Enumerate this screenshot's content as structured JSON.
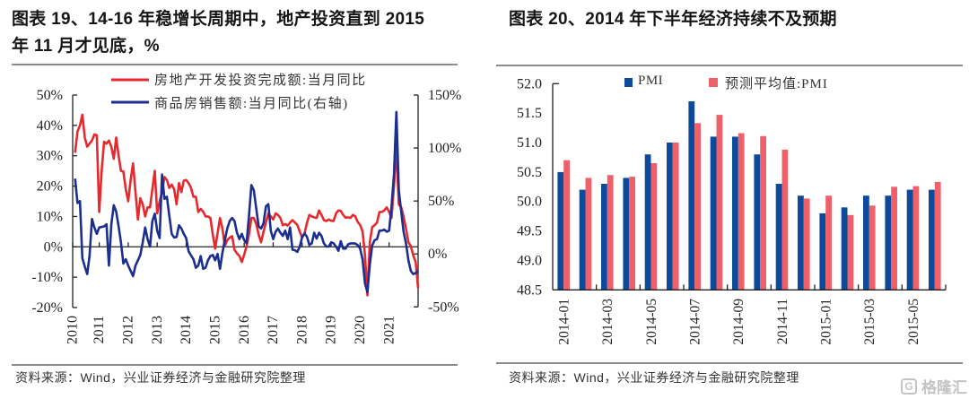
{
  "left_panel": {
    "title_line1": "图表 19、14-16 年稳增长周期中，地产投资直到 2015",
    "title_line2": "年 11 月才见底，%",
    "source": "资料来源：Wind，兴业证券经济与金融研究院整理"
  },
  "right_panel": {
    "title": "图表 20、2014 年下半年经济持续不及预期",
    "source": "资料来源：Wind，兴业证券经济与金融研究院整理"
  },
  "watermark": {
    "icon": "gelonghui-logo-icon",
    "logo_glyph": "G",
    "text": "格隆汇"
  },
  "chart_data": [
    {
      "type": "line",
      "title": "图表 19、14-16 年稳增长周期中，地产投资直到 2015 年 11 月才见底，%",
      "xlabel": "",
      "legend_position": "top-center",
      "grid": false,
      "x_tick_labels": [
        "2010",
        "2011",
        "2012",
        "2013",
        "2014",
        "2015",
        "2016",
        "2017",
        "2018",
        "2019",
        "2020",
        "2021"
      ],
      "y_left": {
        "range": [
          -20,
          50
        ],
        "ticks": [
          {
            "value": 50,
            "label": "50%"
          },
          {
            "value": 40,
            "label": "40%"
          },
          {
            "value": 30,
            "label": "30%"
          },
          {
            "value": 20,
            "label": "20%"
          },
          {
            "value": 10,
            "label": "10%"
          },
          {
            "value": 0,
            "label": "0%"
          },
          {
            "value": -10,
            "label": "-10%"
          },
          {
            "value": -20,
            "label": "-20%"
          }
        ]
      },
      "y_right": {
        "range": [
          -50,
          150
        ],
        "ticks": [
          {
            "value": 150,
            "label": "150%"
          },
          {
            "value": 100,
            "label": "100%"
          },
          {
            "value": 50,
            "label": "50%"
          },
          {
            "value": 0,
            "label": "0%"
          },
          {
            "value": -50,
            "label": "-50%"
          }
        ]
      },
      "x": [
        "2010-02",
        "2010-03",
        "2010-04",
        "2010-05",
        "2010-06",
        "2010-07",
        "2010-08",
        "2010-09",
        "2010-10",
        "2010-11",
        "2010-12",
        "2011-01",
        "2011-02",
        "2011-03",
        "2011-04",
        "2011-05",
        "2011-06",
        "2011-07",
        "2011-08",
        "2011-09",
        "2011-10",
        "2011-11",
        "2011-12",
        "2012-01",
        "2012-02",
        "2012-03",
        "2012-04",
        "2012-05",
        "2012-06",
        "2012-07",
        "2012-08",
        "2012-09",
        "2012-10",
        "2012-11",
        "2012-12",
        "2013-01",
        "2013-02",
        "2013-03",
        "2013-04",
        "2013-05",
        "2013-06",
        "2013-07",
        "2013-08",
        "2013-09",
        "2013-10",
        "2013-11",
        "2013-12",
        "2014-01",
        "2014-02",
        "2014-03",
        "2014-04",
        "2014-05",
        "2014-06",
        "2014-07",
        "2014-08",
        "2014-09",
        "2014-10",
        "2014-11",
        "2014-12",
        "2015-01",
        "2015-02",
        "2015-03",
        "2015-04",
        "2015-05",
        "2015-06",
        "2015-07",
        "2015-08",
        "2015-09",
        "2015-10",
        "2015-11",
        "2015-12",
        "2016-01",
        "2016-02",
        "2016-03",
        "2016-04",
        "2016-05",
        "2016-06",
        "2016-07",
        "2016-08",
        "2016-09",
        "2016-10",
        "2016-11",
        "2016-12",
        "2017-01",
        "2017-02",
        "2017-03",
        "2017-04",
        "2017-05",
        "2017-06",
        "2017-07",
        "2017-08",
        "2017-09",
        "2017-10",
        "2017-11",
        "2017-12",
        "2018-01",
        "2018-02",
        "2018-03",
        "2018-04",
        "2018-05",
        "2018-06",
        "2018-07",
        "2018-08",
        "2018-09",
        "2018-10",
        "2018-11",
        "2018-12",
        "2019-01",
        "2019-02",
        "2019-03",
        "2019-04",
        "2019-05",
        "2019-06",
        "2019-07",
        "2019-08",
        "2019-09",
        "2019-10",
        "2019-11",
        "2019-12",
        "2020-01",
        "2020-02",
        "2020-03",
        "2020-04",
        "2020-05",
        "2020-06",
        "2020-07",
        "2020-08",
        "2020-09",
        "2020-10",
        "2020-11",
        "2020-12",
        "2021-01",
        "2021-02",
        "2021-03",
        "2021-04",
        "2021-05",
        "2021-06",
        "2021-07",
        "2021-08",
        "2021-09",
        "2021-10",
        "2021-11",
        "2021-12"
      ],
      "series": [
        {
          "name": "房地产开发投资完成额:当月同比",
          "axis": "left",
          "color": "#e52a2f",
          "values": [
            31,
            38,
            40,
            43.5,
            36,
            33,
            34,
            35,
            37,
            36.8,
            11.5,
            25,
            34.6,
            34,
            35,
            33,
            29,
            36,
            30,
            25,
            24.8,
            19,
            15,
            22,
            27.5,
            18,
            9,
            16,
            14,
            10,
            13,
            13,
            19,
            25,
            11,
            15,
            18,
            23,
            22,
            19.4,
            20.5,
            19,
            14,
            21,
            18,
            21.8,
            22,
            21,
            19.4,
            16.5,
            16.5,
            11.5,
            12.5,
            11.6,
            10,
            10,
            9.5,
            4,
            -0.6,
            4.5,
            9.5,
            6,
            0.3,
            2.2,
            3,
            3.5,
            -1,
            -2.2,
            -3,
            -5,
            -2.5,
            0.2,
            4,
            9.5,
            9.5,
            7.5,
            4,
            1.5,
            5,
            8,
            11,
            10,
            9,
            11,
            10.5,
            9.5,
            7.1,
            7.5,
            7,
            8,
            8.8,
            8,
            7.2,
            5,
            3,
            4.5,
            8,
            10.5,
            10,
            9.7,
            9.5,
            12,
            10.5,
            8.8,
            8.5,
            9,
            8.6,
            8.5,
            11,
            12,
            11.8,
            10.5,
            9.6,
            9.7,
            9.5,
            10.5,
            10,
            8.2,
            7.2,
            5.1,
            -2.8,
            -16,
            1.5,
            6.5,
            7.1,
            8,
            11.5,
            11.5,
            12,
            13,
            11.5,
            9.5,
            20,
            33,
            14,
            13,
            10,
            6,
            1.5,
            0.2,
            -2.8,
            -5,
            -13.6
          ]
        },
        {
          "name": "商品房销售额:当月同比(右轴)",
          "axis": "right",
          "color": "#1c2e8e",
          "values": [
            71,
            48,
            50,
            -4,
            -12,
            -19,
            -2,
            33,
            25,
            19,
            25,
            25.5,
            26,
            28,
            -11,
            28,
            46,
            40,
            26,
            11,
            -9,
            -5,
            -11,
            -16,
            -21,
            -11,
            -6,
            -1,
            11,
            25,
            14,
            7,
            31,
            38,
            22,
            15,
            75,
            52,
            54,
            36,
            19,
            15.5,
            16,
            27,
            24,
            19,
            15,
            2.5,
            -1.4,
            -5,
            -13,
            -11,
            -2,
            -14,
            -13,
            -6,
            -2,
            -1,
            -6,
            0,
            -14,
            1,
            13,
            24,
            31,
            34,
            31,
            20,
            14,
            19,
            13,
            10,
            36,
            65,
            60,
            43,
            26,
            24,
            29,
            45,
            47,
            22,
            14,
            21,
            24,
            20,
            17,
            22,
            14,
            25,
            4,
            3.5,
            2,
            7,
            16,
            19.5,
            16,
            8.5,
            10,
            20,
            14.5,
            20,
            17,
            10,
            7,
            7,
            11,
            10,
            7,
            3,
            12,
            5,
            5,
            9,
            10,
            10,
            9.8,
            8.3,
            5,
            -5,
            -28,
            -36,
            -10,
            8,
            13,
            14,
            22,
            22,
            23,
            21,
            22,
            45,
            75,
            134,
            60,
            40,
            21,
            10,
            -6,
            -16,
            -19,
            -18,
            -16
          ]
        }
      ]
    },
    {
      "type": "bar",
      "title": "图表 20、2014 年下半年经济持续不及预期",
      "xlabel": "",
      "ylabel": "",
      "legend_position": "top",
      "grid": false,
      "ylim": [
        48.5,
        52.0
      ],
      "y_ticks": [
        {
          "value": 52.0,
          "label": "52.0"
        },
        {
          "value": 51.5,
          "label": "51.5"
        },
        {
          "value": 51.0,
          "label": "51.0"
        },
        {
          "value": 50.5,
          "label": "50.5"
        },
        {
          "value": 50.0,
          "label": "50.0"
        },
        {
          "value": 49.5,
          "label": "49.5"
        },
        {
          "value": 49.0,
          "label": "49.0"
        },
        {
          "value": 48.5,
          "label": "48.5"
        }
      ],
      "categories": [
        "2014-01",
        "2014-02",
        "2014-03",
        "2014-04",
        "2014-05",
        "2014-06",
        "2014-07",
        "2014-08",
        "2014-09",
        "2014-10",
        "2014-11",
        "2014-12",
        "2015-01",
        "2015-02",
        "2015-03",
        "2015-04",
        "2015-05",
        "2015-06"
      ],
      "tick_labels": [
        "2014-01",
        "2014-03",
        "2014-05",
        "2014-07",
        "2014-09",
        "2014-11",
        "2015-01",
        "2015-03",
        "2015-05"
      ],
      "series": [
        {
          "name": "PMI",
          "color": "#0d4a9a",
          "values": [
            50.5,
            50.2,
            50.3,
            50.4,
            50.8,
            51.0,
            51.7,
            51.1,
            51.1,
            50.8,
            50.3,
            50.1,
            49.8,
            49.9,
            50.1,
            50.1,
            50.2,
            50.2
          ]
        },
        {
          "name": "预测平均值:PMI",
          "color": "#f0606a",
          "values": [
            50.7,
            50.4,
            50.45,
            50.42,
            50.65,
            51.0,
            51.33,
            51.47,
            51.16,
            51.11,
            50.88,
            50.05,
            50.1,
            49.77,
            49.93,
            50.25,
            50.26,
            50.33
          ]
        }
      ]
    }
  ]
}
